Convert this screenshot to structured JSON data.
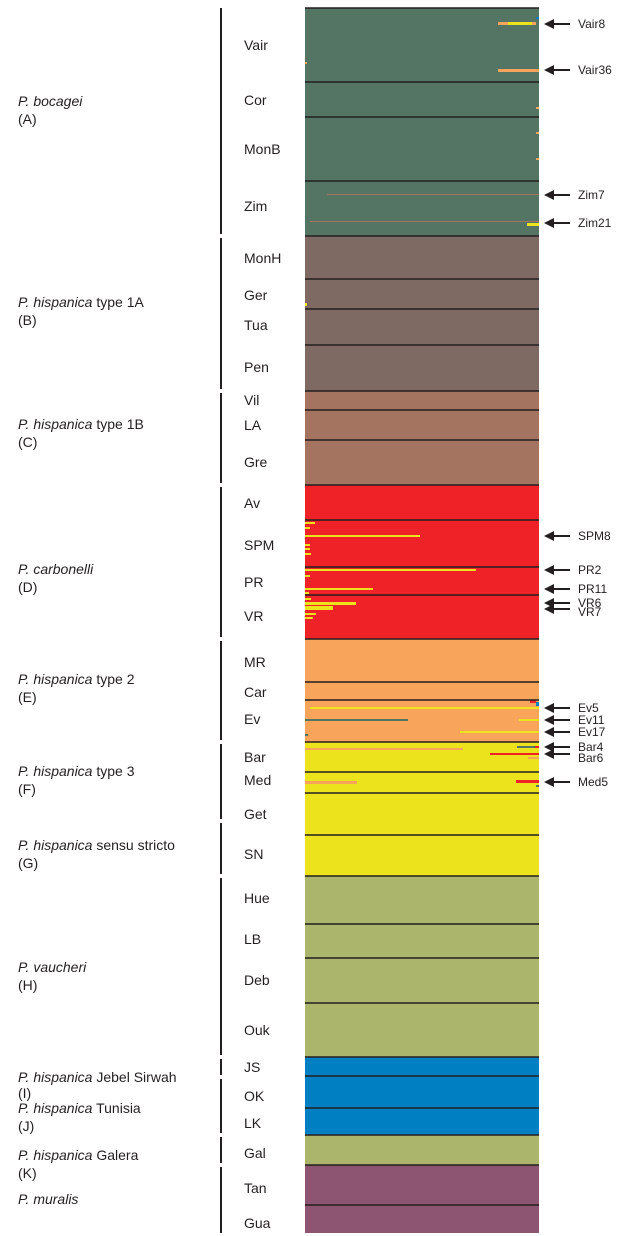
{
  "colors": {
    "bocagei": "#547564",
    "type1A": "#7e6a62",
    "type1B": "#a57461",
    "carbonelli": "#ee2227",
    "type2": "#f8a45b",
    "yellow": "#ede31d",
    "vaucheri": "#acb56c",
    "blue": "#0080c3",
    "muralis": "#8e5572",
    "line": "#231f20"
  },
  "groups": [
    {
      "name_italic": "P. bocagei",
      "name_rest": "",
      "letter": "(A)"
    },
    {
      "name_italic": "P. hispanica",
      "name_rest": " type 1A",
      "letter": "(B)"
    },
    {
      "name_italic": "P. hispanica",
      "name_rest": " type 1B",
      "letter": "(C)"
    },
    {
      "name_italic": "P. carbonelli",
      "name_rest": "",
      "letter": "(D)"
    },
    {
      "name_italic": "P. hispanica",
      "name_rest": " type 2",
      "letter": "(E)"
    },
    {
      "name_italic": "P. hispanica",
      "name_rest": " type 3",
      "letter": "(F)"
    },
    {
      "name_italic": "P. hispanica",
      "name_rest": " sensu stricto",
      "letter": "(G)"
    },
    {
      "name_italic": "P. vaucheri",
      "name_rest": "",
      "letter": "(H)"
    },
    {
      "name_italic": "P. hispanica",
      "name_rest": " Jebel Sirwah",
      "letter": "(I)"
    },
    {
      "name_italic": "P. hispanica",
      "name_rest": " Tunisia",
      "letter": "(J)"
    },
    {
      "name_italic": "P. hispanica",
      "name_rest": " Galera",
      "letter": "(K)"
    },
    {
      "name_italic": "P. muralis",
      "name_rest": "",
      "letter": ""
    }
  ],
  "populations": [
    "Vair",
    "Cor",
    "MonB",
    "Zim",
    "MonH",
    "Ger",
    "Tua",
    "Pen",
    "Vil",
    "LA",
    "Gre",
    "Av",
    "SPM",
    "PR",
    "VR",
    "MR",
    "Car",
    "Ev",
    "Bar",
    "Med",
    "Get",
    "SN",
    "Hue",
    "LB",
    "Deb",
    "Ouk",
    "JS",
    "OK",
    "LK",
    "Gal",
    "Tan",
    "Gua"
  ],
  "individuals": [
    "Vair8",
    "Vair36",
    "Zim7",
    "Zim21",
    "SPM8",
    "PR2",
    "PR11",
    "VR6",
    "VR7",
    "Ev5",
    "Ev11",
    "Ev17",
    "Bar4",
    "Bar6",
    "Med5"
  ]
}
